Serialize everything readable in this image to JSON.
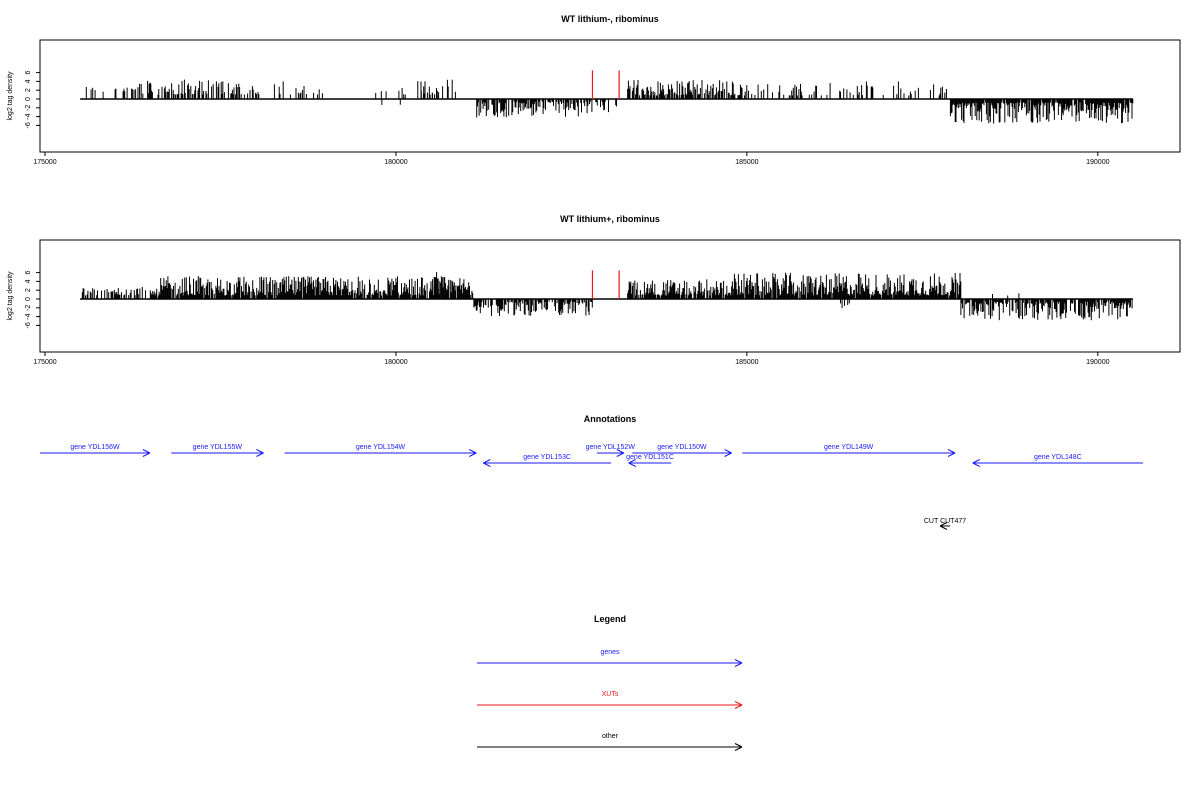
{
  "chart_data": [
    {
      "type": "bar",
      "title": "WT lithium-, ribominus",
      "ylabel": "log2 tag density",
      "xlim": [
        175000,
        191000
      ],
      "ylim": [
        -6,
        7
      ],
      "xticks": [
        175000,
        180000,
        185000,
        190000
      ],
      "yticks": [
        -6,
        -4,
        -2,
        0,
        2,
        4,
        6
      ],
      "grid": false,
      "baseline_range": [
        175500,
        190500
      ],
      "highlight_color": "#e8191b",
      "highlight_x": [
        182800,
        183180
      ],
      "highlight_top": 6.5,
      "regions": [
        {
          "start": 175520,
          "end": 176200,
          "density": 0.22,
          "sign": 1,
          "min": 1.6,
          "max": 3.0
        },
        {
          "start": 176200,
          "end": 178100,
          "density": 0.55,
          "sign": 1,
          "min": 1.0,
          "max": 4.5
        },
        {
          "start": 178200,
          "end": 179000,
          "density": 0.14,
          "sign": 1,
          "min": 1.0,
          "max": 4.4
        },
        {
          "start": 179700,
          "end": 180600,
          "density": 0.18,
          "sign": 1,
          "min": 1.0,
          "max": 3.0
        },
        {
          "start": 179800,
          "end": 180300,
          "density": 0.06,
          "sign": -1,
          "min": 1.0,
          "max": 2.8
        },
        {
          "start": 180300,
          "end": 180950,
          "density": 0.35,
          "sign": 1,
          "min": 1.0,
          "max": 4.6
        },
        {
          "start": 181150,
          "end": 182800,
          "density": 0.7,
          "sign": -1,
          "min": 0.6,
          "max": 4.3
        },
        {
          "start": 182800,
          "end": 183150,
          "density": 0.3,
          "sign": -1,
          "min": 0.6,
          "max": 3.0
        },
        {
          "start": 183300,
          "end": 185000,
          "density": 0.7,
          "sign": 1,
          "min": 0.8,
          "max": 4.5
        },
        {
          "start": 185000,
          "end": 186600,
          "density": 0.22,
          "sign": 1,
          "min": 0.8,
          "max": 3.7
        },
        {
          "start": 186600,
          "end": 187900,
          "density": 0.3,
          "sign": 1,
          "min": 0.8,
          "max": 4.0
        },
        {
          "start": 187900,
          "end": 190500,
          "density": 0.9,
          "sign": -1,
          "min": 0.8,
          "max": 5.6
        }
      ]
    },
    {
      "type": "bar",
      "title": "WT lithium+, ribominus",
      "ylabel": "log2 tag density",
      "xlim": [
        175000,
        191000
      ],
      "ylim": [
        -6,
        7
      ],
      "xticks": [
        175000,
        180000,
        185000,
        190000
      ],
      "yticks": [
        -6,
        -4,
        -2,
        0,
        2,
        4,
        6
      ],
      "grid": false,
      "baseline_range": [
        175500,
        190500
      ],
      "highlight_color": "#e8191b",
      "highlight_x": [
        182800,
        183180
      ],
      "highlight_top": 6.5,
      "regions": [
        {
          "start": 175520,
          "end": 176500,
          "density": 0.45,
          "sign": 1,
          "min": 0.8,
          "max": 2.8
        },
        {
          "start": 176500,
          "end": 181100,
          "density": 0.92,
          "sign": 1,
          "min": 0.8,
          "max": 5.2
        },
        {
          "start": 180500,
          "end": 180650,
          "density": 0.4,
          "sign": 1,
          "min": 4.0,
          "max": 6.4
        },
        {
          "start": 181100,
          "end": 182800,
          "density": 0.65,
          "sign": -1,
          "min": 0.6,
          "max": 3.9
        },
        {
          "start": 183300,
          "end": 184800,
          "density": 0.85,
          "sign": 1,
          "min": 0.8,
          "max": 4.5
        },
        {
          "start": 184800,
          "end": 188050,
          "density": 0.95,
          "sign": 1,
          "min": 0.8,
          "max": 6.0
        },
        {
          "start": 186300,
          "end": 186500,
          "density": 0.1,
          "sign": -1,
          "min": 1.0,
          "max": 2.2
        },
        {
          "start": 188050,
          "end": 190500,
          "density": 0.8,
          "sign": -1,
          "min": 0.6,
          "max": 5.0
        },
        {
          "start": 188500,
          "end": 189000,
          "density": 0.1,
          "sign": 1,
          "min": 0.8,
          "max": 1.6
        }
      ]
    }
  ],
  "annotations": {
    "title": "Annotations",
    "color_gene": "#1a1aff",
    "color_other": "#000000",
    "color_xut": "#e8191b",
    "genes": [
      {
        "label": "gene YDL156W",
        "start": 174950,
        "end": 176500,
        "row": 1,
        "strand": "+"
      },
      {
        "label": "gene YDL155W",
        "start": 176800,
        "end": 178100,
        "row": 1,
        "strand": "+"
      },
      {
        "label": "gene YDL154W",
        "start": 178400,
        "end": 181100,
        "row": 1,
        "strand": "+"
      },
      {
        "label": "gene YDL153C",
        "start": 181200,
        "end": 183000,
        "row": 2,
        "strand": "-"
      },
      {
        "label": "gene YDL152W",
        "start": 182800,
        "end": 183180,
        "row": 1,
        "strand": "+"
      },
      {
        "label": "gene YDL151C",
        "start": 183250,
        "end": 183850,
        "row": 2,
        "strand": "-"
      },
      {
        "label": "gene YDL150W",
        "start": 183300,
        "end": 184700,
        "row": 1,
        "strand": "+"
      },
      {
        "label": "gene YDL149W",
        "start": 184850,
        "end": 187850,
        "row": 1,
        "strand": "+"
      },
      {
        "label": "gene YDL148C",
        "start": 188100,
        "end": 190500,
        "row": 2,
        "strand": "-"
      }
    ],
    "other": [
      {
        "label": "CUT CUT477",
        "start": 187850,
        "end": 188100,
        "strand": "-"
      }
    ]
  },
  "legend": {
    "title": "Legend",
    "items": [
      {
        "label": "genes",
        "color": "#1a1aff"
      },
      {
        "label": "XUTs",
        "color": "#e8191b"
      },
      {
        "label": "other",
        "color": "#000000"
      }
    ]
  }
}
